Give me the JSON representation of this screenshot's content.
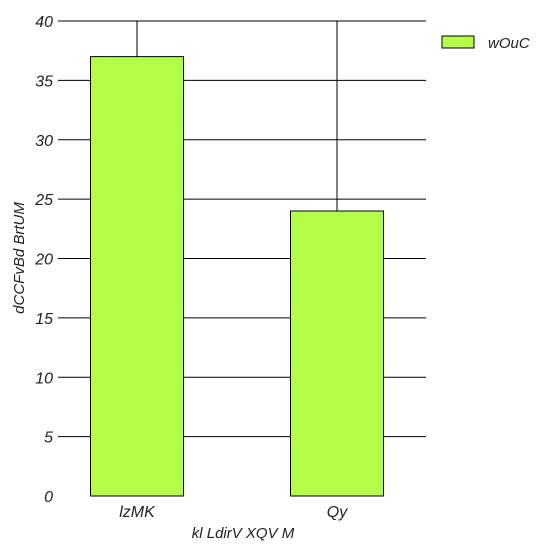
{
  "chart_data": {
    "type": "bar",
    "title": "",
    "xlabel": "kl LdirV XQV M",
    "ylabel": "dCCFvBd BrtUM",
    "categories": [
      "lzMK",
      "Qy"
    ],
    "series": [
      {
        "name": "wOuC",
        "values": [
          37,
          24
        ]
      }
    ],
    "ylim": [
      0,
      40
    ],
    "yticks": [
      0,
      5,
      10,
      15,
      20,
      25,
      30,
      35,
      40
    ],
    "ytick_labels": [
      "0",
      "5",
      "10",
      "15",
      "20",
      "25",
      "30",
      "35",
      "40"
    ],
    "grid": true,
    "legend_position": "top-right"
  },
  "colors": {
    "bar_fill": "#b3ff47",
    "bar_stroke": "#000000",
    "grid": "#000000",
    "text": "#222222"
  }
}
